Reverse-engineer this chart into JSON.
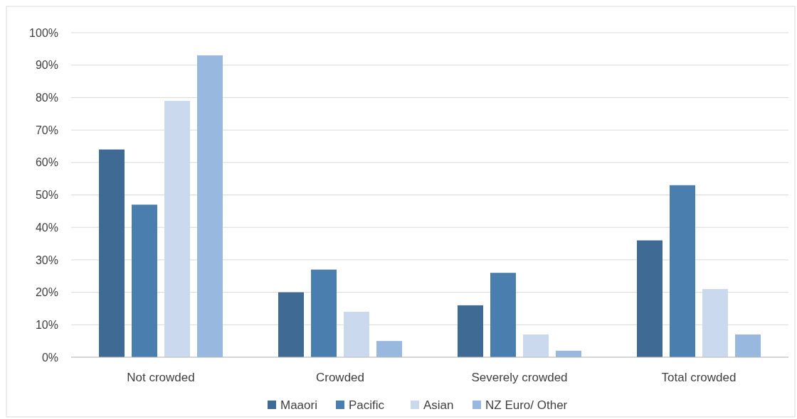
{
  "chart_data": {
    "type": "bar",
    "categories": [
      "Not crowded",
      "Crowded",
      "Severely crowded",
      "Total crowded"
    ],
    "series": [
      {
        "name": "Maaori",
        "color": "#3e6a94",
        "values": [
          64,
          20,
          16,
          36
        ]
      },
      {
        "name": "Pacific",
        "color": "#4a7eae",
        "values": [
          47,
          27,
          26,
          53
        ]
      },
      {
        "name": "Asian",
        "color": "#cbd9ee",
        "values": [
          79,
          14,
          7,
          21
        ]
      },
      {
        "name": "NZ Euro/ Other",
        "color": "#98b8e0",
        "values": [
          93,
          5,
          2,
          7
        ]
      }
    ],
    "ylim": [
      0,
      100
    ],
    "yticks": [
      {
        "value": 0,
        "label": "0%"
      },
      {
        "value": 10,
        "label": "10%"
      },
      {
        "value": 20,
        "label": "20%"
      },
      {
        "value": 30,
        "label": "30%"
      },
      {
        "value": 40,
        "label": "40%"
      },
      {
        "value": 50,
        "label": "50%"
      },
      {
        "value": 60,
        "label": "60%"
      },
      {
        "value": 70,
        "label": "70%"
      },
      {
        "value": 80,
        "label": "80%"
      },
      {
        "value": 90,
        "label": "90%"
      },
      {
        "value": 100,
        "label": "100%"
      }
    ],
    "grid": "y",
    "legend": "bottom"
  }
}
